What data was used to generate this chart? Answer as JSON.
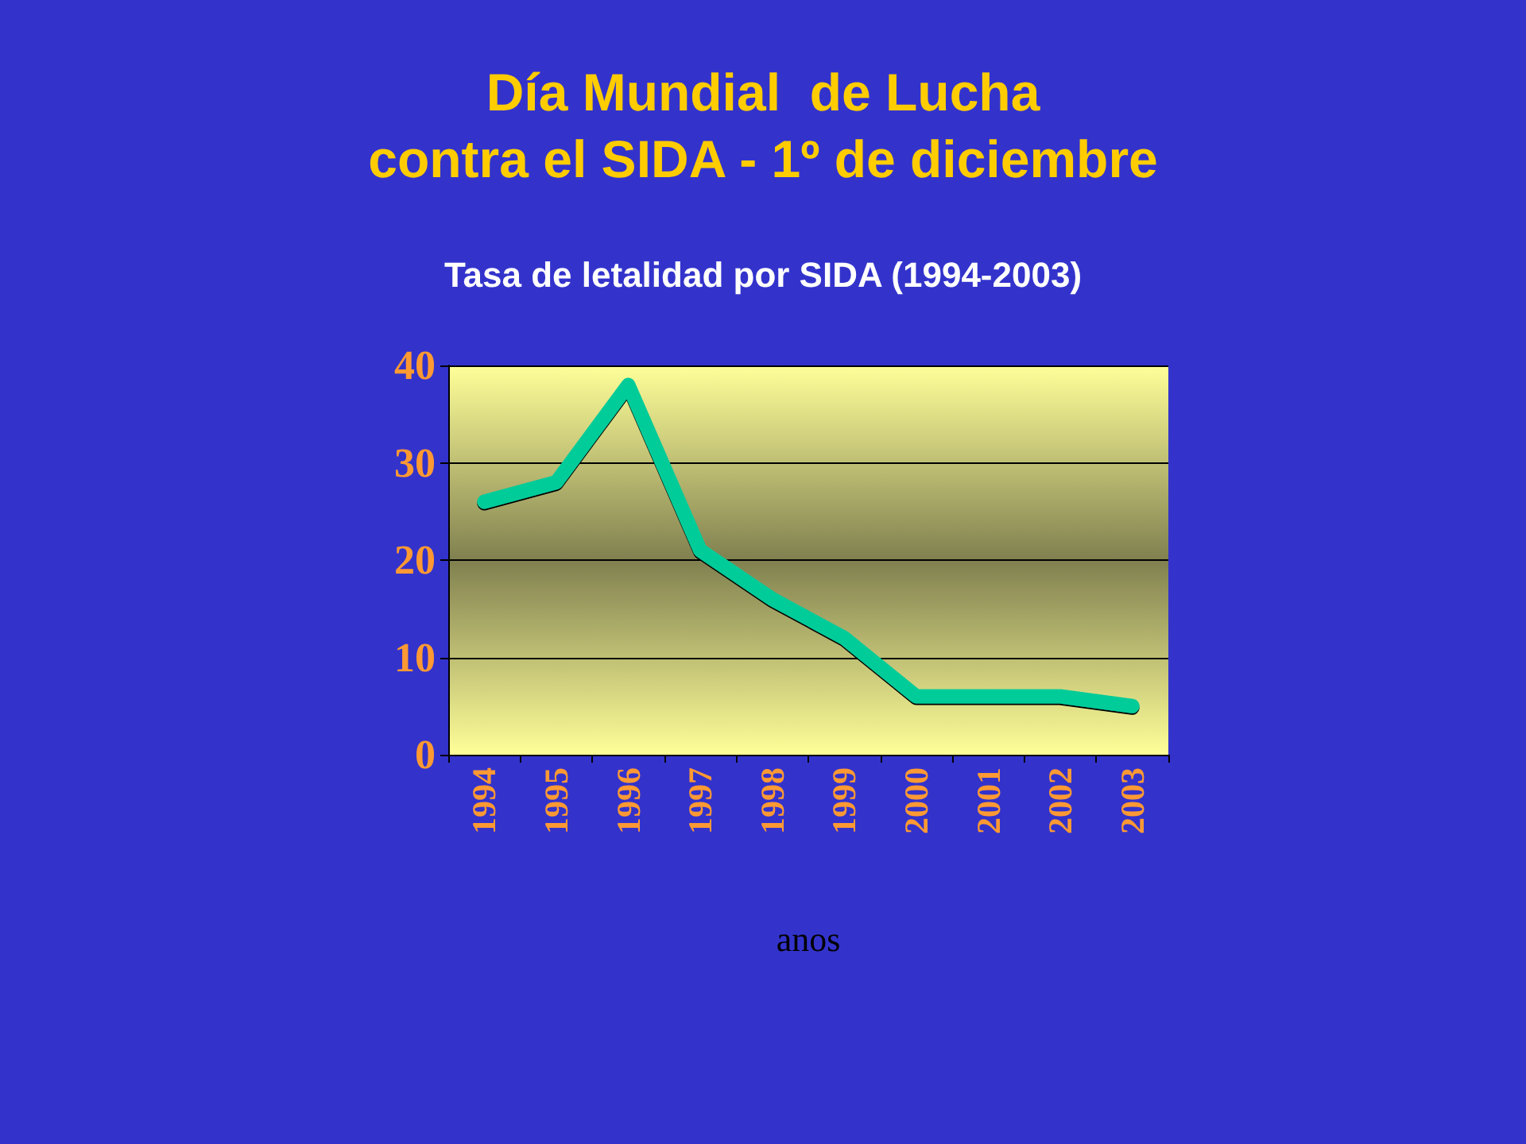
{
  "chart_data": {
    "type": "line",
    "title": "Día Mundial  de Lucha\ncontra el SIDA - 1º de diciembre",
    "subtitle": "Tasa de letalidad por SIDA (1994-2003)",
    "xlabel": "anos",
    "categories": [
      "1994",
      "1995",
      "1996",
      "1997",
      "1998",
      "1999",
      "2000",
      "2001",
      "2002",
      "2003"
    ],
    "series": [
      {
        "color": "#00cc99",
        "values": [
          26,
          28,
          38,
          21,
          16,
          12,
          6,
          6,
          6,
          5
        ]
      }
    ],
    "ylim": [
      0,
      40
    ],
    "yticks": [
      0,
      10,
      20,
      30,
      40
    ],
    "grid": "y",
    "line_style": "solid"
  }
}
